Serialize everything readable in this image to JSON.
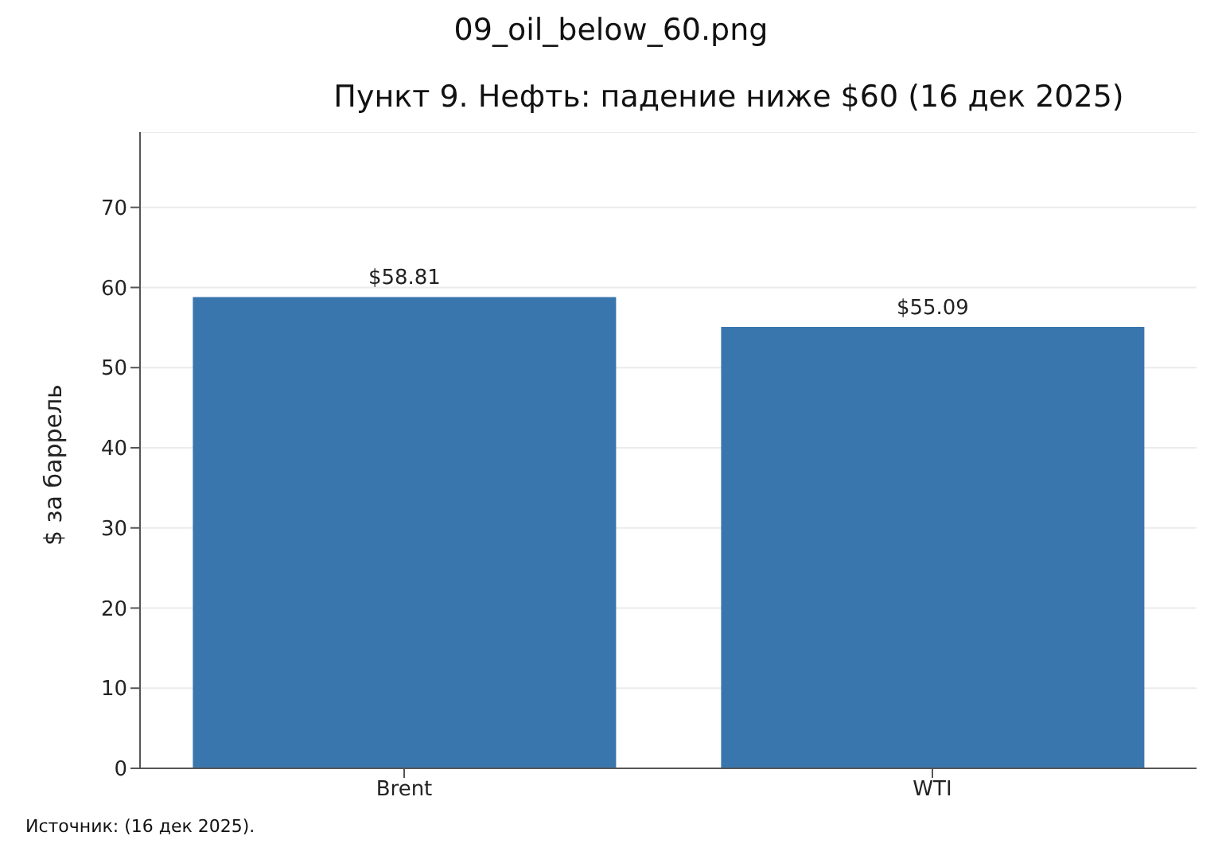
{
  "chart_data": {
    "type": "bar",
    "title": "09_oil_below_60.png",
    "subtitle": "Пункт 9. Нефть: падение ниже $60 (16 дек 2025)",
    "ylabel": "$ за баррель",
    "categories": [
      "Brent",
      "WTI"
    ],
    "values": [
      58.81,
      55.09
    ],
    "value_labels": [
      "$58.81",
      "$55.09"
    ],
    "color": "#3a76ae",
    "ylim": [
      0,
      79.4
    ],
    "yticks": [
      0,
      10,
      20,
      30,
      40,
      50,
      60,
      70
    ],
    "grid": "y",
    "annotations": [
      "Источник: (16 дек 2025)."
    ]
  }
}
